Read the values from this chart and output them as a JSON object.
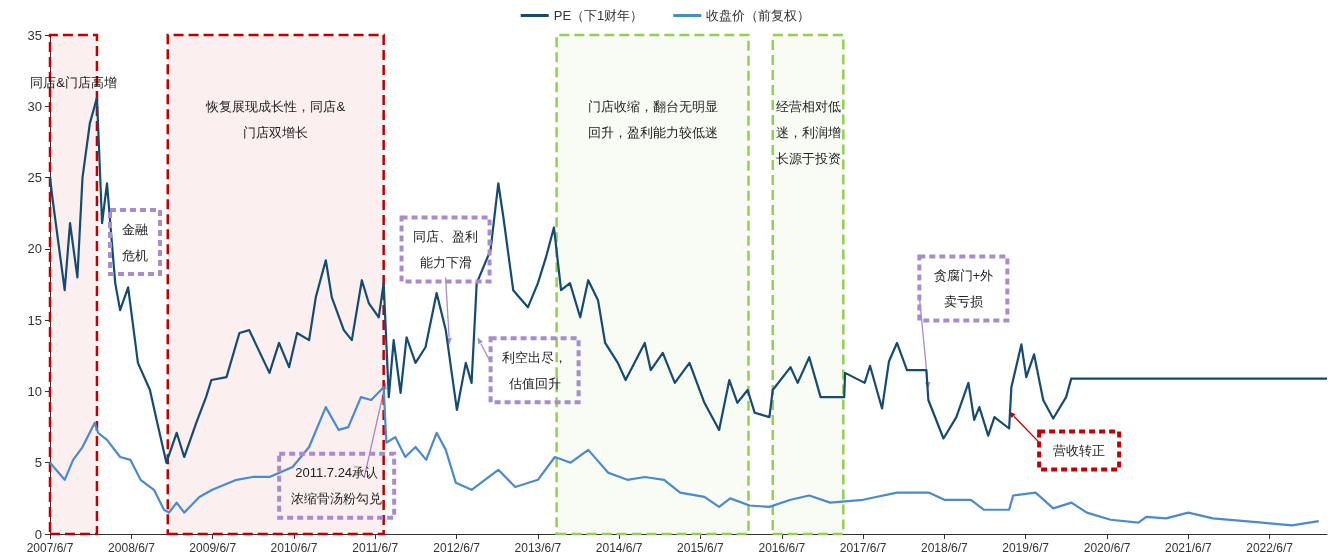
{
  "chart_data": {
    "type": "line",
    "xlim": [
      "2007-06-07",
      "2023-02-20"
    ],
    "xticks": [
      {
        "value": "2007-06-07",
        "label": "2007/6/7"
      },
      {
        "value": "2008-06-07",
        "label": "2008/6/7"
      },
      {
        "value": "2009-06-07",
        "label": "2009/6/7"
      },
      {
        "value": "2010-06-07",
        "label": "2010/6/7"
      },
      {
        "value": "2011-06-07",
        "label": "2011/6/7"
      },
      {
        "value": "2012-06-07",
        "label": "2012/6/7"
      },
      {
        "value": "2013-06-07",
        "label": "2013/6/7"
      },
      {
        "value": "2014-06-07",
        "label": "2014/6/7"
      },
      {
        "value": "2015-06-07",
        "label": "2015/6/7"
      },
      {
        "value": "2016-06-07",
        "label": "2016/6/7"
      },
      {
        "value": "2017-06-07",
        "label": "2017/6/7"
      },
      {
        "value": "2018-06-07",
        "label": "2018/6/7"
      },
      {
        "value": "2019-06-07",
        "label": "2019/6/7"
      },
      {
        "value": "2020-06-07",
        "label": "2020/6/7"
      },
      {
        "value": "2021-06-07",
        "label": "2021/6/7"
      },
      {
        "value": "2022-06-07",
        "label": "2022/6/7"
      }
    ],
    "ylim": [
      0,
      35
    ],
    "yticks": [
      0,
      5,
      10,
      15,
      20,
      25,
      30,
      35
    ],
    "grid": false,
    "legend": "top",
    "series": [
      {
        "name": "PE（下1财年）",
        "color": "#154a72",
        "x": [
          "2007-06-07",
          "2007-06-21",
          "2007-08-12",
          "2007-09-05",
          "2007-10-08",
          "2007-10-31",
          "2007-12-03",
          "2008-01-04",
          "2008-01-27",
          "2008-02-18",
          "2008-03-26",
          "2008-04-17",
          "2008-05-23",
          "2008-07-06",
          "2008-08-29",
          "2008-09-28",
          "2008-11-11",
          "2008-12-27",
          "2009-01-30",
          "2009-03-25",
          "2009-05-08",
          "2009-06-01",
          "2009-08-08",
          "2009-10-05",
          "2009-11-18",
          "2010-02-17",
          "2010-04-01",
          "2010-05-16",
          "2010-06-21",
          "2010-08-14",
          "2010-09-13",
          "2010-10-28",
          "2010-11-24",
          "2011-01-17",
          "2011-02-22",
          "2011-04-08",
          "2011-05-09",
          "2011-06-23",
          "2011-07-15",
          "2011-08-07",
          "2011-08-29",
          "2011-09-29",
          "2011-10-26",
          "2011-12-05",
          "2012-01-19",
          "2012-03-09",
          "2012-04-19",
          "2012-06-08",
          "2012-07-18",
          "2012-08-13",
          "2012-09-05",
          "2012-11-06",
          "2012-12-11",
          "2013-01-03",
          "2013-02-16",
          "2013-04-23",
          "2013-06-07",
          "2013-07-13",
          "2013-08-18",
          "2013-09-19",
          "2013-10-29",
          "2013-12-14",
          "2014-01-19",
          "2014-03-04",
          "2014-04-05",
          "2014-06-01",
          "2014-07-06",
          "2014-09-30",
          "2014-10-27",
          "2014-12-20",
          "2015-02-12",
          "2015-04-19",
          "2015-06-25",
          "2015-08-30",
          "2015-10-15",
          "2015-11-20",
          "2016-01-05",
          "2016-02-06",
          "2016-04-12",
          "2016-04-27",
          "2016-07-16",
          "2016-08-17",
          "2016-10-08",
          "2016-11-28",
          "2017-03-14",
          "2017-03-18",
          "2017-06-14",
          "2017-07-08",
          "2017-08-31",
          "2017-10-01",
          "2017-11-06",
          "2017-12-21",
          "2018-03-18",
          "2018-03-27",
          "2018-06-03",
          "2018-07-31",
          "2018-09-23",
          "2018-10-19",
          "2018-11-11",
          "2018-12-21",
          "2019-01-18",
          "2019-03-25",
          "2019-04-04",
          "2019-05-19",
          "2019-06-10",
          "2019-07-15",
          "2019-08-25",
          "2019-10-09",
          "2019-12-06",
          "2019-12-29",
          "2023-02-20"
        ],
        "values": [
          25.0,
          23.2,
          17.1,
          21.8,
          18.0,
          25.0,
          28.8,
          30.6,
          21.8,
          24.6,
          17.6,
          15.7,
          17.3,
          12.0,
          10.1,
          8.0,
          5.0,
          7.1,
          5.4,
          7.8,
          9.6,
          10.8,
          11.0,
          14.1,
          14.3,
          11.3,
          13.4,
          11.7,
          14.1,
          13.6,
          16.6,
          19.2,
          16.6,
          14.3,
          13.6,
          17.8,
          16.2,
          15.2,
          17.6,
          9.6,
          13.6,
          9.9,
          13.8,
          12.0,
          13.1,
          16.9,
          14.3,
          8.7,
          12.0,
          10.6,
          17.6,
          19.9,
          24.6,
          22.2,
          17.1,
          15.9,
          17.6,
          19.4,
          21.5,
          17.1,
          17.6,
          15.2,
          17.8,
          16.4,
          13.4,
          12.0,
          10.8,
          13.4,
          11.5,
          12.7,
          10.6,
          12.0,
          9.2,
          7.3,
          10.8,
          9.2,
          10.1,
          8.5,
          8.2,
          10.1,
          11.7,
          10.6,
          12.4,
          9.6,
          9.6,
          11.3,
          10.6,
          11.8,
          8.8,
          12.1,
          13.4,
          11.5,
          11.5,
          9.4,
          6.7,
          8.2,
          10.6,
          8.0,
          8.9,
          6.9,
          8.2,
          7.4,
          10.3,
          13.3,
          11.0,
          12.6,
          9.4,
          8.1,
          9.6,
          10.9,
          10.9
        ]
      },
      {
        "name": "收盘价（前复权）",
        "color": "#4a8ad0",
        "x": [
          "2007-06-07",
          "2007-08-12",
          "2007-09-19",
          "2007-10-31",
          "2007-12-25",
          "2008-01-09",
          "2008-02-18",
          "2008-04-17",
          "2008-06-02",
          "2008-07-18",
          "2008-09-16",
          "2008-10-31",
          "2008-11-23",
          "2008-12-27",
          "2009-01-30",
          "2009-04-08",
          "2009-06-05",
          "2009-09-22",
          "2009-12-04",
          "2010-02-17",
          "2010-06-01",
          "2010-08-14",
          "2010-10-28",
          "2010-12-25",
          "2011-02-06",
          "2011-04-04",
          "2011-05-20",
          "2011-07-15",
          "2011-07-27",
          "2011-09-05",
          "2011-10-20",
          "2011-12-05",
          "2012-01-22",
          "2012-03-09",
          "2012-04-19",
          "2012-06-03",
          "2012-08-13",
          "2012-12-11",
          "2013-02-25",
          "2013-06-07",
          "2013-08-22",
          "2013-11-01",
          "2014-01-19",
          "2014-04-19",
          "2014-07-14",
          "2014-09-30",
          "2014-12-26",
          "2015-03-08",
          "2015-06-25",
          "2015-08-30",
          "2015-10-19",
          "2016-01-14",
          "2016-04-12",
          "2016-07-16",
          "2016-10-08",
          "2017-01-10",
          "2017-06-07",
          "2017-11-06",
          "2018-03-31",
          "2018-06-07",
          "2018-10-04",
          "2018-12-02",
          "2019-03-25",
          "2019-04-12",
          "2019-07-22",
          "2019-10-09",
          "2019-12-30",
          "2020-03-08",
          "2020-06-23",
          "2020-10-26",
          "2020-11-30",
          "2021-02-27",
          "2021-06-07",
          "2021-09-25",
          "2022-05-05",
          "2022-09-15",
          "2023-01-14"
        ],
        "values": [
          5.0,
          3.8,
          5.2,
          6.1,
          7.8,
          7.1,
          6.6,
          5.4,
          5.2,
          3.8,
          3.1,
          1.7,
          1.5,
          2.2,
          1.5,
          2.6,
          3.1,
          3.8,
          4.0,
          4.0,
          4.7,
          6.1,
          8.9,
          7.3,
          7.5,
          9.6,
          9.4,
          10.3,
          6.4,
          6.8,
          5.4,
          6.1,
          5.2,
          7.1,
          5.9,
          3.6,
          3.1,
          4.5,
          3.3,
          3.8,
          5.4,
          5.0,
          5.9,
          4.3,
          3.8,
          4.0,
          3.8,
          2.9,
          2.6,
          1.9,
          2.5,
          2.0,
          1.9,
          2.4,
          2.7,
          2.2,
          2.4,
          2.9,
          2.9,
          2.4,
          2.4,
          1.7,
          1.7,
          2.7,
          2.9,
          1.8,
          2.2,
          1.5,
          1.0,
          0.8,
          1.2,
          1.1,
          1.5,
          1.1,
          0.8,
          0.6,
          0.9
        ]
      }
    ],
    "bands": [
      {
        "axis": "x",
        "from": "2007-06-07",
        "to": "2008-01-04",
        "label": "同店&门店高增",
        "color": "#c00000"
      },
      {
        "axis": "x",
        "from": "2008-11-17",
        "to": "2011-07-15",
        "label": "恢复展现成长性，同店&门店双增长",
        "color": "#c00000"
      },
      {
        "axis": "x",
        "from": "2013-08-30",
        "to": "2016-01-09",
        "label": "门店收缩，翻台无明显回升，盈利能力较低迷",
        "color": "#92d050"
      },
      {
        "axis": "x",
        "from": "2016-04-27",
        "to": "2017-03-10",
        "label": "经营相对低迷，利润增长源于投资",
        "color": "#92d050"
      }
    ],
    "annotations": [
      "金融危机",
      {
        "text": "同店、盈利能力下滑",
        "x": "2012-05-06",
        "y": 13.3
      },
      {
        "text": "利空出尽，估值回升",
        "x": "2012-09-09",
        "y": 13.8
      },
      {
        "text": "2011.7.24承认浓缩骨汤粉勾兑",
        "x": "2011-07-24",
        "y": 10.6
      },
      {
        "text": "贪腐门+外卖亏损",
        "x": "2018-03-27",
        "y": 10.2
      },
      {
        "text": "营收转正",
        "x": "2019-03-25",
        "y": 8.6
      }
    ]
  }
}
